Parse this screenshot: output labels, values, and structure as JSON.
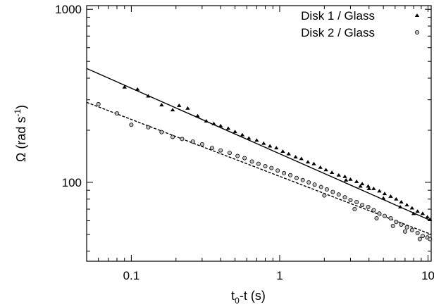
{
  "chart_data": {
    "type": "scatter",
    "xscale": "log",
    "yscale": "log",
    "xlim": [
      0.05,
      10.5
    ],
    "ylim": [
      35,
      1050
    ],
    "xticks_major": [
      0.1,
      1,
      10
    ],
    "xtick_labels": [
      "0.1",
      "1",
      "10"
    ],
    "yticks_major": [
      100,
      1000
    ],
    "ytick_labels": [
      "100",
      "1000"
    ],
    "xlabel": {
      "main": "t",
      "sub": "0",
      "rest": "-t (s)"
    },
    "ylabel": {
      "main": "Ω (rad s",
      "sup": "-1",
      "rest": ")"
    },
    "grid": false,
    "legend_position": "top-right",
    "series": [
      {
        "name": "Disk 1 / Glass",
        "marker": "triangle",
        "color": "#000000",
        "fit": {
          "x0": 0.05,
          "y0": 455,
          "x1": 10.5,
          "y1": 60,
          "style": "solid"
        },
        "points": [
          [
            0.09,
            355
          ],
          [
            0.11,
            345
          ],
          [
            0.13,
            315
          ],
          [
            0.16,
            280
          ],
          [
            0.19,
            262
          ],
          [
            0.21,
            278
          ],
          [
            0.24,
            268
          ],
          [
            0.28,
            242
          ],
          [
            0.32,
            226
          ],
          [
            0.36,
            218
          ],
          [
            0.4,
            212
          ],
          [
            0.45,
            205
          ],
          [
            0.5,
            196
          ],
          [
            0.56,
            188
          ],
          [
            0.62,
            180
          ],
          [
            0.7,
            175
          ],
          [
            0.78,
            168
          ],
          [
            0.86,
            162
          ],
          [
            0.95,
            158
          ],
          [
            1.05,
            151
          ],
          [
            1.15,
            146
          ],
          [
            1.28,
            140
          ],
          [
            1.4,
            137
          ],
          [
            1.55,
            131
          ],
          [
            1.7,
            128
          ],
          [
            1.88,
            122
          ],
          [
            2.05,
            118
          ],
          [
            2.25,
            114
          ],
          [
            2.5,
            110
          ],
          [
            2.75,
            108
          ],
          [
            3.0,
            104
          ],
          [
            3.3,
            101
          ],
          [
            3.6,
            98
          ],
          [
            3.95,
            95
          ],
          [
            4.3,
            92
          ],
          [
            4.7,
            89
          ],
          [
            5.1,
            86
          ],
          [
            5.6,
            83
          ],
          [
            6.1,
            80
          ],
          [
            6.6,
            77
          ],
          [
            7.2,
            74
          ],
          [
            7.8,
            71
          ],
          [
            8.5,
            68
          ],
          [
            9.2,
            66
          ],
          [
            9.9,
            63
          ],
          [
            10.3,
            61
          ],
          [
            4.0,
            92
          ],
          [
            5.0,
            81
          ],
          [
            6.5,
            72
          ],
          [
            8.0,
            66
          ],
          [
            2.8,
            103
          ],
          [
            3.5,
            95
          ]
        ]
      },
      {
        "name": "Disk 2 / Glass",
        "marker": "circle",
        "color": "#000000",
        "fit": {
          "x0": 0.05,
          "y0": 290,
          "x1": 10.5,
          "y1": 50,
          "style": "dashed"
        },
        "points": [
          [
            0.06,
            283
          ],
          [
            0.08,
            250
          ],
          [
            0.1,
            215
          ],
          [
            0.13,
            208
          ],
          [
            0.16,
            195
          ],
          [
            0.19,
            183
          ],
          [
            0.22,
            178
          ],
          [
            0.26,
            172
          ],
          [
            0.3,
            166
          ],
          [
            0.35,
            158
          ],
          [
            0.4,
            153
          ],
          [
            0.46,
            148
          ],
          [
            0.52,
            142
          ],
          [
            0.58,
            138
          ],
          [
            0.65,
            132
          ],
          [
            0.72,
            128
          ],
          [
            0.8,
            124
          ],
          [
            0.88,
            121
          ],
          [
            0.97,
            117
          ],
          [
            1.07,
            113
          ],
          [
            1.18,
            110
          ],
          [
            1.3,
            106
          ],
          [
            1.43,
            103
          ],
          [
            1.57,
            100
          ],
          [
            1.72,
            97
          ],
          [
            1.9,
            94
          ],
          [
            2.08,
            91
          ],
          [
            2.28,
            88
          ],
          [
            2.5,
            85
          ],
          [
            2.75,
            82
          ],
          [
            3.0,
            79
          ],
          [
            3.3,
            77
          ],
          [
            3.6,
            74
          ],
          [
            3.95,
            72
          ],
          [
            4.3,
            69
          ],
          [
            4.7,
            66
          ],
          [
            5.1,
            64
          ],
          [
            5.6,
            62
          ],
          [
            6.1,
            59
          ],
          [
            6.6,
            57
          ],
          [
            7.2,
            55
          ],
          [
            7.8,
            53
          ],
          [
            8.5,
            51
          ],
          [
            9.2,
            49
          ],
          [
            9.9,
            48
          ],
          [
            10.3,
            47
          ],
          [
            3.2,
            70
          ],
          [
            4.5,
            62
          ],
          [
            5.8,
            56
          ],
          [
            7.0,
            52
          ],
          [
            8.8,
            47
          ],
          [
            2.0,
            84
          ]
        ]
      }
    ]
  }
}
